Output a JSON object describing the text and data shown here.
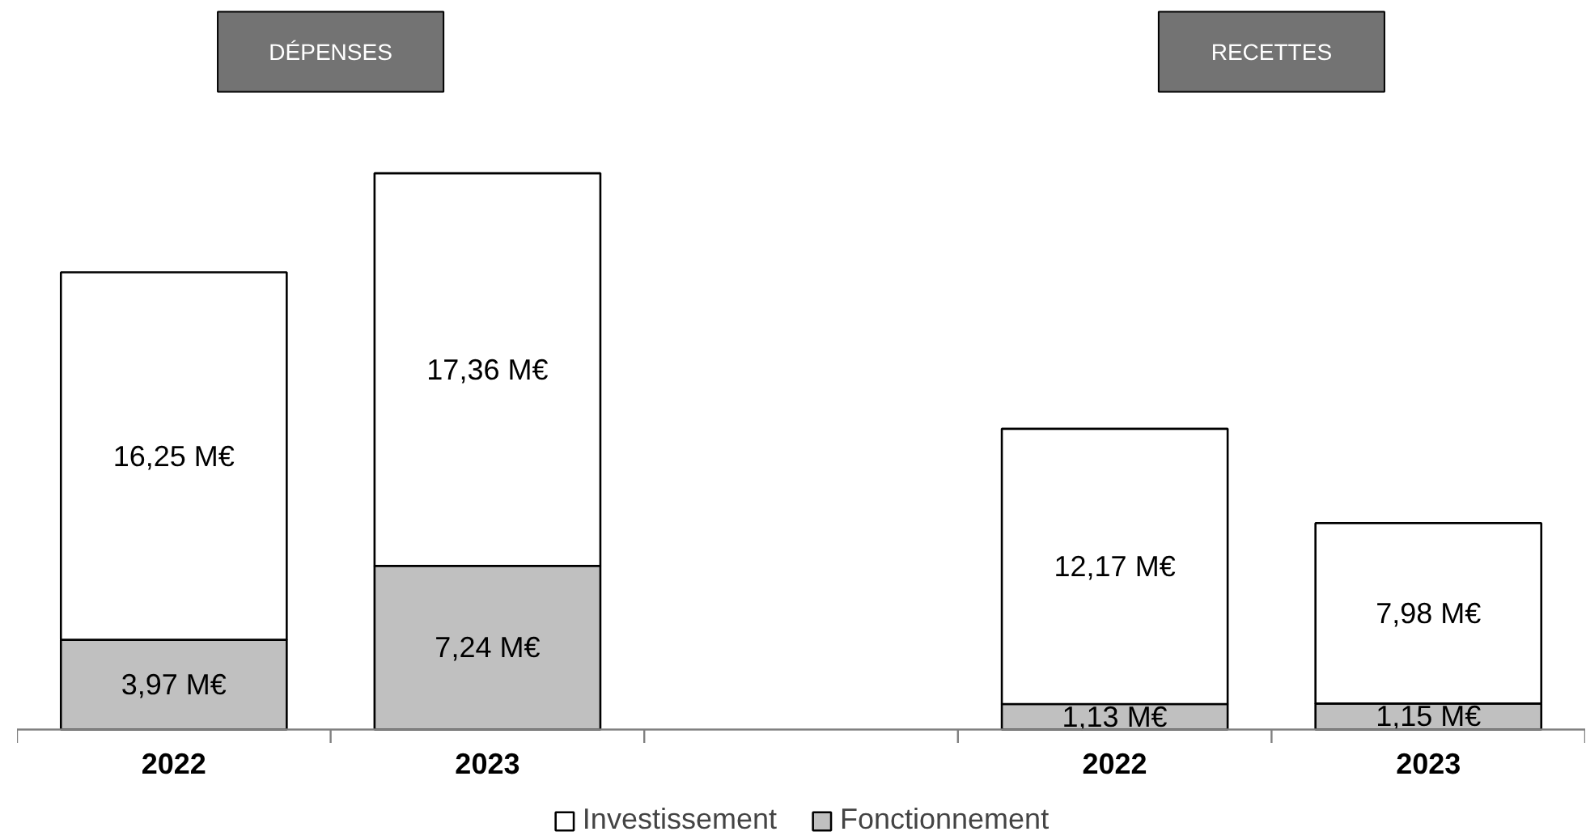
{
  "chart_data": {
    "type": "bar",
    "stacked": true,
    "categories": [
      "2022",
      "2023",
      null,
      "2022",
      "2023"
    ],
    "series": [
      {
        "name": "Fonctionnement",
        "color": "#c0c0c0",
        "values": [
          3.97,
          7.24,
          null,
          1.13,
          1.15
        ],
        "value_labels": [
          "3,97 M€",
          "7,24 M€",
          null,
          "1,13 M€",
          "1,15 M€"
        ]
      },
      {
        "name": "Investissement",
        "color": "#ffffff",
        "values": [
          16.25,
          17.36,
          null,
          12.17,
          7.98
        ],
        "value_labels": [
          "16,25 M€",
          "17,36 M€",
          null,
          "12,17 M€",
          "7,98 M€"
        ]
      }
    ],
    "annotations": [
      "DÉPENSES",
      "RECETTES"
    ],
    "legend": "bottom",
    "grid": false
  }
}
